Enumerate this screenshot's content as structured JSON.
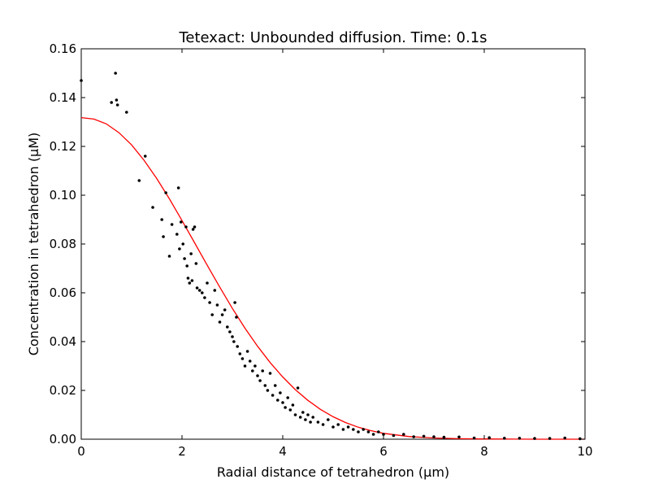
{
  "chart_data": {
    "type": "scatter",
    "title": "Tetexact: Unbounded diffusion. Time: 0.1s",
    "xlabel": "Radial distance of tetrahedron (μm)",
    "ylabel": "Concentration in tetrahedron (μM)",
    "xlim": [
      0,
      10
    ],
    "ylim": [
      0,
      0.16
    ],
    "xticks": [
      0,
      2,
      4,
      6,
      8,
      10
    ],
    "yticks": [
      0.0,
      0.02,
      0.04,
      0.06,
      0.08,
      0.1,
      0.12,
      0.14,
      0.16
    ],
    "xtick_labels": [
      "0",
      "2",
      "4",
      "6",
      "8",
      "10"
    ],
    "ytick_labels": [
      "0.00",
      "0.02",
      "0.04",
      "0.06",
      "0.08",
      "0.10",
      "0.12",
      "0.14",
      "0.16"
    ],
    "grid": false,
    "series": [
      {
        "kind": "scatter",
        "color": "#000000",
        "points": [
          [
            0.0,
            0.147
          ],
          [
            0.6,
            0.138
          ],
          [
            0.68,
            0.15
          ],
          [
            0.7,
            0.139
          ],
          [
            0.72,
            0.137
          ],
          [
            0.9,
            0.134
          ],
          [
            1.15,
            0.106
          ],
          [
            1.27,
            0.116
          ],
          [
            1.42,
            0.095
          ],
          [
            1.6,
            0.09
          ],
          [
            1.63,
            0.083
          ],
          [
            1.68,
            0.101
          ],
          [
            1.75,
            0.075
          ],
          [
            1.8,
            0.088
          ],
          [
            1.9,
            0.084
          ],
          [
            1.93,
            0.103
          ],
          [
            1.95,
            0.078
          ],
          [
            1.98,
            0.089
          ],
          [
            2.02,
            0.08
          ],
          [
            2.05,
            0.074
          ],
          [
            2.08,
            0.087
          ],
          [
            2.1,
            0.071
          ],
          [
            2.12,
            0.066
          ],
          [
            2.15,
            0.064
          ],
          [
            2.18,
            0.076
          ],
          [
            2.2,
            0.065
          ],
          [
            2.22,
            0.086
          ],
          [
            2.25,
            0.087
          ],
          [
            2.28,
            0.072
          ],
          [
            2.3,
            0.062
          ],
          [
            2.35,
            0.061
          ],
          [
            2.4,
            0.06
          ],
          [
            2.45,
            0.058
          ],
          [
            2.5,
            0.064
          ],
          [
            2.55,
            0.056
          ],
          [
            2.6,
            0.051
          ],
          [
            2.65,
            0.061
          ],
          [
            2.7,
            0.055
          ],
          [
            2.75,
            0.048
          ],
          [
            2.8,
            0.051
          ],
          [
            2.85,
            0.053
          ],
          [
            2.9,
            0.046
          ],
          [
            2.95,
            0.044
          ],
          [
            3.0,
            0.042
          ],
          [
            3.03,
            0.04
          ],
          [
            3.05,
            0.056
          ],
          [
            3.08,
            0.05
          ],
          [
            3.1,
            0.038
          ],
          [
            3.15,
            0.035
          ],
          [
            3.2,
            0.033
          ],
          [
            3.25,
            0.03
          ],
          [
            3.3,
            0.036
          ],
          [
            3.35,
            0.032
          ],
          [
            3.4,
            0.028
          ],
          [
            3.45,
            0.03
          ],
          [
            3.5,
            0.026
          ],
          [
            3.55,
            0.024
          ],
          [
            3.6,
            0.028
          ],
          [
            3.65,
            0.022
          ],
          [
            3.7,
            0.02
          ],
          [
            3.75,
            0.027
          ],
          [
            3.8,
            0.018
          ],
          [
            3.85,
            0.022
          ],
          [
            3.9,
            0.016
          ],
          [
            3.95,
            0.019
          ],
          [
            4.0,
            0.015
          ],
          [
            4.05,
            0.013
          ],
          [
            4.1,
            0.017
          ],
          [
            4.15,
            0.012
          ],
          [
            4.2,
            0.014
          ],
          [
            4.25,
            0.01
          ],
          [
            4.3,
            0.021
          ],
          [
            4.35,
            0.009
          ],
          [
            4.4,
            0.011
          ],
          [
            4.45,
            0.008
          ],
          [
            4.5,
            0.01
          ],
          [
            4.55,
            0.007
          ],
          [
            4.6,
            0.009
          ],
          [
            4.7,
            0.007
          ],
          [
            4.8,
            0.006
          ],
          [
            4.9,
            0.008
          ],
          [
            5.0,
            0.005
          ],
          [
            5.1,
            0.006
          ],
          [
            5.2,
            0.004
          ],
          [
            5.3,
            0.005
          ],
          [
            5.4,
            0.004
          ],
          [
            5.5,
            0.003
          ],
          [
            5.6,
            0.004
          ],
          [
            5.7,
            0.003
          ],
          [
            5.8,
            0.002
          ],
          [
            5.9,
            0.003
          ],
          [
            6.0,
            0.002
          ],
          [
            6.2,
            0.0015
          ],
          [
            6.4,
            0.002
          ],
          [
            6.6,
            0.001
          ],
          [
            6.8,
            0.0012
          ],
          [
            7.0,
            0.001
          ],
          [
            7.2,
            0.0008
          ],
          [
            7.5,
            0.0009
          ],
          [
            7.8,
            0.0005
          ],
          [
            8.1,
            0.0006
          ],
          [
            8.4,
            0.0004
          ],
          [
            8.7,
            0.0004
          ],
          [
            9.0,
            0.0003
          ],
          [
            9.3,
            0.0003
          ],
          [
            9.6,
            0.0005
          ],
          [
            9.9,
            0.0002
          ]
        ]
      },
      {
        "kind": "line",
        "color": "#ff0000",
        "points": [
          [
            0.0,
            0.1318
          ],
          [
            0.25,
            0.1312
          ],
          [
            0.5,
            0.1292
          ],
          [
            0.75,
            0.1256
          ],
          [
            1.0,
            0.1206
          ],
          [
            1.25,
            0.1142
          ],
          [
            1.5,
            0.1068
          ],
          [
            1.75,
            0.0985
          ],
          [
            2.0,
            0.0896
          ],
          [
            2.25,
            0.0805
          ],
          [
            2.5,
            0.0713
          ],
          [
            2.75,
            0.0623
          ],
          [
            3.0,
            0.0536
          ],
          [
            3.25,
            0.0455
          ],
          [
            3.5,
            0.0381
          ],
          [
            3.75,
            0.0314
          ],
          [
            4.0,
            0.0255
          ],
          [
            4.25,
            0.0203
          ],
          [
            4.5,
            0.0159
          ],
          [
            4.75,
            0.0122
          ],
          [
            5.0,
            0.0092
          ],
          [
            5.25,
            0.0068
          ],
          [
            5.5,
            0.0049
          ],
          [
            5.75,
            0.0035
          ],
          [
            6.0,
            0.0024
          ],
          [
            6.5,
            0.0011
          ],
          [
            7.0,
            0.0005
          ],
          [
            7.5,
            0.0002
          ],
          [
            8.0,
            0.0001
          ],
          [
            9.0,
            0.0
          ],
          [
            10.0,
            0.0
          ]
        ]
      }
    ]
  }
}
